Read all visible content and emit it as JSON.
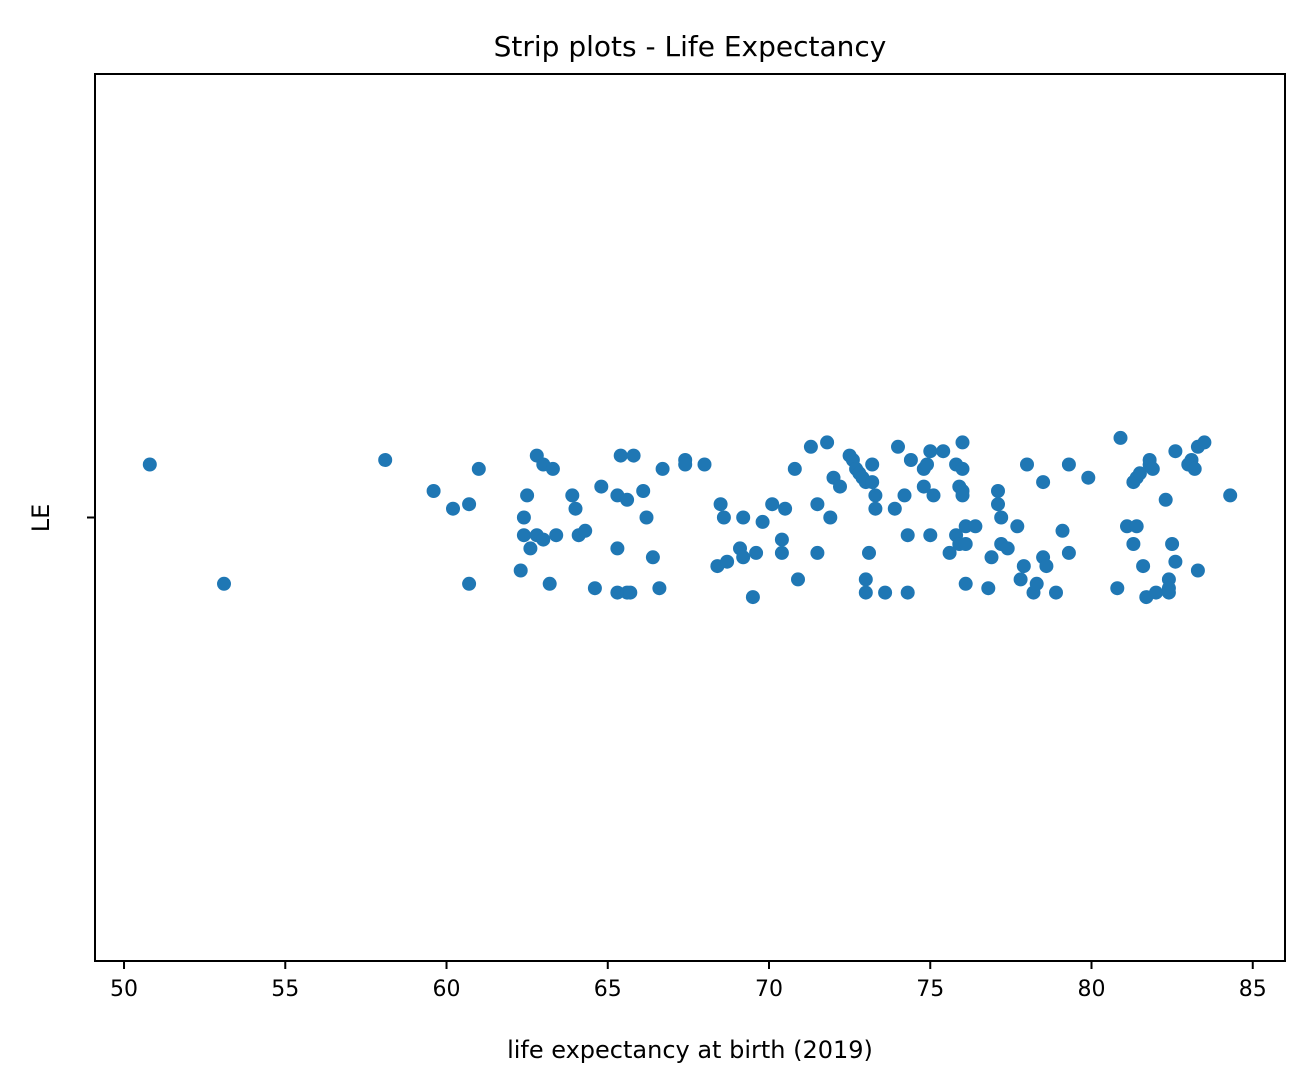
{
  "chart_data": {
    "type": "scatter",
    "variant": "strip",
    "title": "Strip plots - Life Expectancy",
    "xlabel": "life expectancy at birth (2019)",
    "ylabel": "LE",
    "xlim": [
      49.1,
      86.0
    ],
    "xticks": [
      50,
      55,
      60,
      65,
      70,
      75,
      80,
      85
    ],
    "ycategories": [
      "LE"
    ],
    "grid": false,
    "legend": "none",
    "point_color": "#1f77b4",
    "series": [
      {
        "category": "LE",
        "values": [
          50.8,
          53.1,
          58.1,
          59.6,
          60.2,
          60.7,
          60.7,
          61.0,
          62.3,
          62.4,
          62.4,
          62.5,
          62.6,
          62.8,
          62.8,
          63.0,
          63.0,
          63.2,
          63.3,
          63.4,
          63.9,
          64.0,
          64.1,
          64.3,
          64.6,
          64.8,
          65.3,
          65.3,
          65.3,
          65.4,
          65.6,
          65.6,
          65.7,
          65.8,
          66.1,
          66.2,
          66.4,
          66.6,
          66.7,
          67.4,
          67.4,
          68.0,
          68.4,
          68.5,
          68.6,
          68.7,
          69.1,
          69.2,
          69.2,
          69.5,
          69.6,
          69.8,
          70.1,
          70.4,
          70.4,
          70.5,
          70.8,
          70.9,
          71.3,
          71.5,
          71.5,
          71.8,
          71.9,
          72.0,
          72.2,
          72.5,
          72.6,
          72.7,
          72.8,
          72.9,
          73.0,
          73.0,
          73.0,
          73.1,
          73.2,
          73.2,
          73.3,
          73.3,
          73.6,
          73.9,
          74.0,
          74.2,
          74.3,
          74.3,
          74.4,
          74.8,
          74.8,
          74.9,
          75.0,
          75.0,
          75.1,
          75.4,
          75.6,
          75.8,
          75.8,
          75.9,
          75.9,
          76.0,
          76.0,
          76.0,
          76.0,
          76.1,
          76.1,
          76.1,
          76.4,
          76.8,
          76.9,
          77.1,
          77.1,
          77.2,
          77.2,
          77.4,
          77.7,
          77.8,
          77.9,
          78.0,
          78.2,
          78.3,
          78.5,
          78.5,
          78.6,
          78.9,
          79.1,
          79.3,
          79.3,
          79.9,
          80.8,
          80.9,
          81.1,
          81.3,
          81.3,
          81.4,
          81.4,
          81.5,
          81.6,
          81.7,
          81.8,
          81.8,
          81.9,
          82.0,
          82.3,
          82.4,
          82.4,
          82.4,
          82.5,
          82.6,
          82.6,
          83.0,
          83.1,
          83.2,
          83.3,
          83.3,
          83.5,
          84.3
        ],
        "jitter": [
          0.12,
          -0.15,
          0.13,
          0.06,
          0.02,
          -0.15,
          0.03,
          0.11,
          -0.12,
          0.0,
          -0.04,
          0.05,
          -0.07,
          0.14,
          -0.04,
          0.12,
          -0.05,
          -0.15,
          0.11,
          -0.04,
          0.05,
          0.02,
          -0.04,
          -0.03,
          -0.16,
          0.07,
          0.05,
          -0.07,
          -0.17,
          0.14,
          -0.17,
          0.04,
          -0.17,
          0.14,
          0.06,
          0.0,
          -0.09,
          -0.16,
          0.11,
          0.13,
          0.12,
          0.12,
          -0.11,
          0.03,
          0.0,
          -0.1,
          -0.07,
          0.0,
          -0.09,
          -0.18,
          -0.08,
          -0.01,
          0.03,
          -0.05,
          -0.08,
          0.02,
          0.11,
          -0.14,
          0.16,
          0.03,
          -0.08,
          0.17,
          0.0,
          0.09,
          0.07,
          0.14,
          0.13,
          0.11,
          0.1,
          0.09,
          -0.14,
          -0.17,
          0.08,
          -0.08,
          0.12,
          0.08,
          0.05,
          0.02,
          -0.17,
          0.02,
          0.16,
          0.05,
          -0.04,
          -0.17,
          0.13,
          0.11,
          0.07,
          0.12,
          0.15,
          -0.04,
          0.05,
          0.15,
          -0.08,
          -0.04,
          0.12,
          0.07,
          -0.06,
          0.17,
          0.11,
          0.06,
          0.05,
          -0.02,
          -0.06,
          -0.15,
          -0.02,
          -0.16,
          -0.09,
          0.06,
          0.03,
          0.0,
          -0.06,
          -0.07,
          -0.02,
          -0.14,
          -0.11,
          0.12,
          -0.17,
          -0.15,
          0.08,
          -0.09,
          -0.11,
          -0.17,
          -0.03,
          -0.08,
          0.12,
          0.09,
          -0.16,
          0.18,
          -0.02,
          -0.06,
          0.08,
          -0.02,
          0.09,
          0.1,
          -0.11,
          -0.18,
          0.12,
          0.13,
          0.11,
          -0.17,
          0.04,
          -0.14,
          -0.16,
          -0.17,
          -0.06,
          0.15,
          -0.1,
          0.12,
          0.13,
          0.11,
          0.16,
          -0.12,
          0.17,
          0.05
        ]
      }
    ]
  }
}
